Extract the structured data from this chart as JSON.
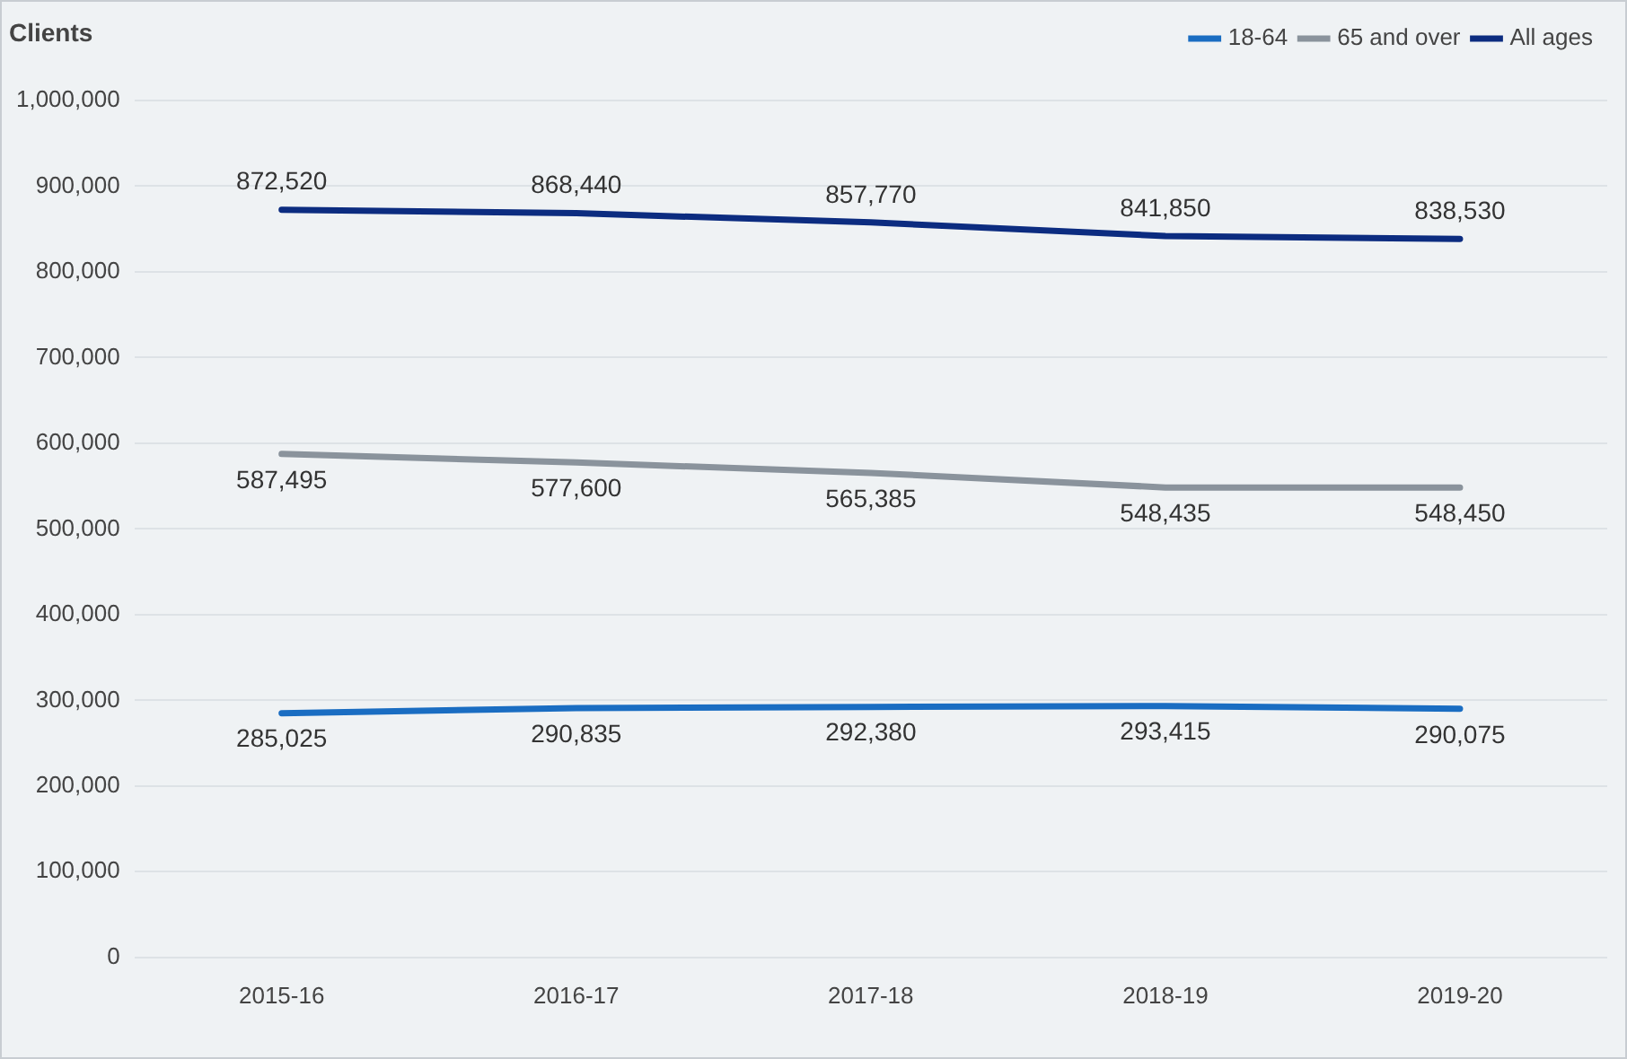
{
  "chart_data": {
    "type": "line",
    "ylabel": "Clients",
    "categories": [
      "2015-16",
      "2016-17",
      "2017-18",
      "2018-19",
      "2019-20"
    ],
    "series": [
      {
        "name": "18-64",
        "color": "#1a6dc2",
        "values": [
          285025,
          290835,
          292380,
          293415,
          290075
        ],
        "value_labels": [
          "285,025",
          "290,835",
          "292,380",
          "293,415",
          "290,075"
        ]
      },
      {
        "name": "65 and over",
        "color": "#8a939c",
        "values": [
          587495,
          577600,
          565385,
          548435,
          548450
        ],
        "value_labels": [
          "587,495",
          "577,600",
          "565,385",
          "548,435",
          "548,450"
        ]
      },
      {
        "name": "All ages",
        "color": "#0c2c80",
        "values": [
          872520,
          868440,
          857770,
          841850,
          838530
        ],
        "value_labels": [
          "872,520",
          "868,440",
          "857,770",
          "841,850",
          "838,530"
        ]
      }
    ],
    "ylim": [
      0,
      1000000
    ],
    "yticks": [
      {
        "value": 0,
        "label": "0"
      },
      {
        "value": 100000,
        "label": "100,000"
      },
      {
        "value": 200000,
        "label": "200,000"
      },
      {
        "value": 300000,
        "label": "300,000"
      },
      {
        "value": 400000,
        "label": "400,000"
      },
      {
        "value": 500000,
        "label": "500,000"
      },
      {
        "value": 600000,
        "label": "600,000"
      },
      {
        "value": 700000,
        "label": "700,000"
      },
      {
        "value": 800000,
        "label": "800,000"
      },
      {
        "value": 900000,
        "label": "900,000"
      },
      {
        "value": 1000000,
        "label": "1,000,000"
      }
    ],
    "grid": "y",
    "legend": "top right",
    "marker": "none",
    "line_style": "solid"
  }
}
